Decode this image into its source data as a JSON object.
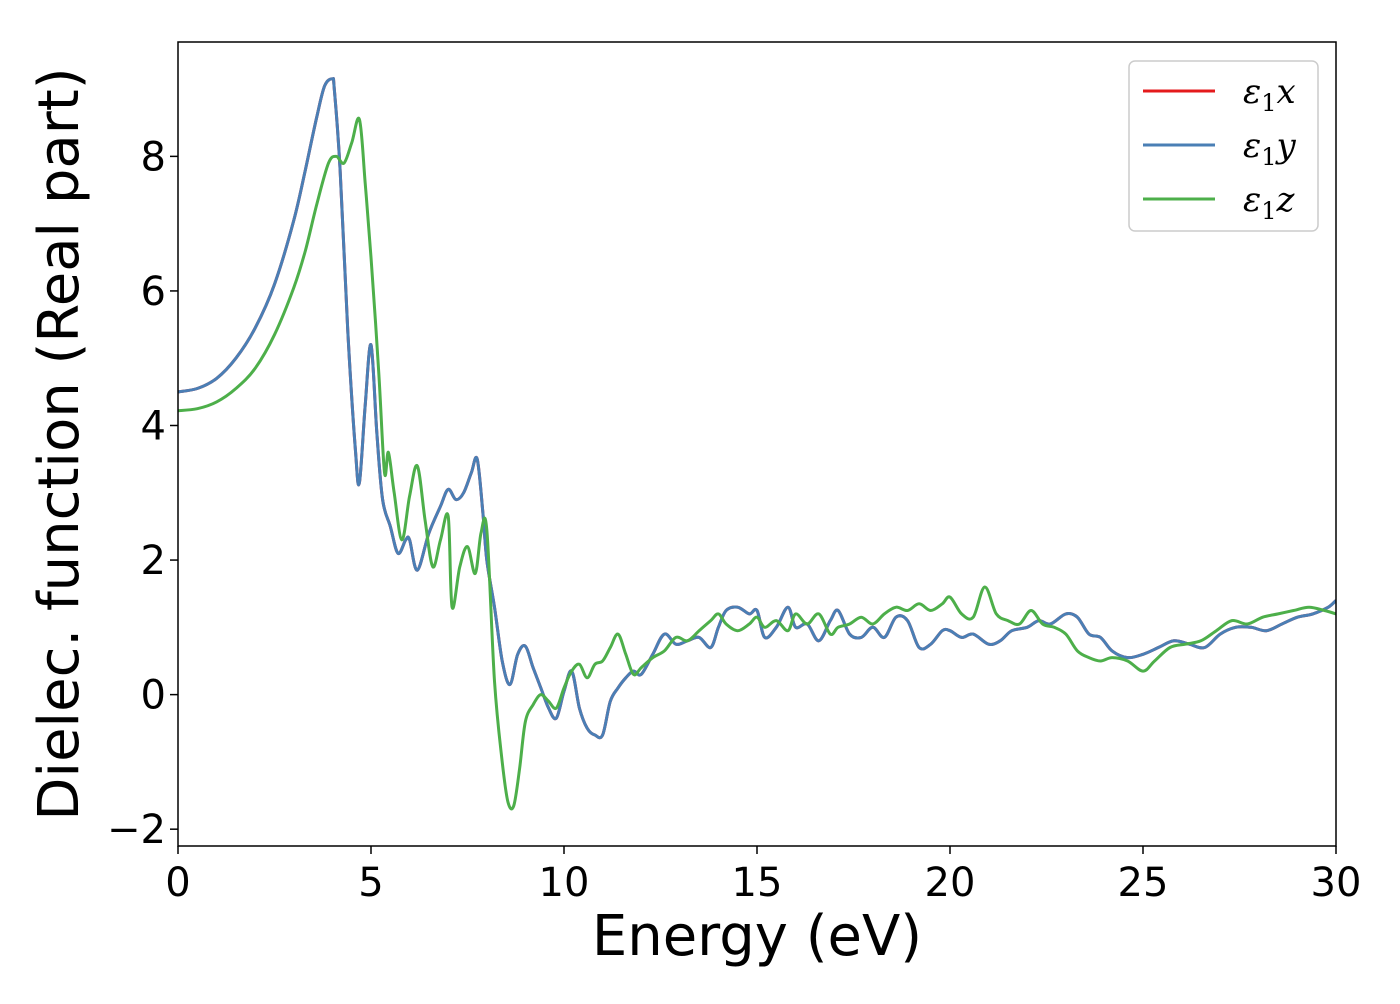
{
  "chart_data": {
    "type": "line",
    "title": "",
    "xlabel": "Energy (eV)",
    "ylabel": "Dielec. function (Real part)",
    "xlim": [
      0,
      30
    ],
    "ylim": [
      -2.25,
      9.7
    ],
    "xticks": [
      0,
      5,
      10,
      15,
      20,
      25,
      30
    ],
    "yticks": [
      -2,
      0,
      2,
      4,
      6,
      8
    ],
    "xtick_labels": [
      "0",
      "5",
      "10",
      "15",
      "20",
      "25",
      "30"
    ],
    "ytick_labels": [
      "−2",
      "0",
      "2",
      "4",
      "6",
      "8"
    ],
    "grid": false,
    "legend_position": "top-right",
    "series": [
      {
        "name": "ε1x",
        "legend": {
          "base": "ε",
          "sub": "1",
          "tail": "x"
        },
        "color": "#e41a1c",
        "x": [
          0,
          0.5,
          1.0,
          1.5,
          2.0,
          2.5,
          3.0,
          3.3,
          3.6,
          3.8,
          4.0,
          4.05,
          4.2,
          4.4,
          4.6,
          4.7,
          4.85,
          5.0,
          5.15,
          5.3,
          5.5,
          5.7,
          5.9,
          6.0,
          6.2,
          6.5,
          6.8,
          7.0,
          7.2,
          7.4,
          7.6,
          7.75,
          7.9,
          8.0,
          8.2,
          8.4,
          8.6,
          8.8,
          9.0,
          9.2,
          9.4,
          9.6,
          9.8,
          10.0,
          10.2,
          10.4,
          10.6,
          10.8,
          11.0,
          11.2,
          11.4,
          11.6,
          11.8,
          12.0,
          12.3,
          12.6,
          12.9,
          13.2,
          13.5,
          13.8,
          14.0,
          14.2,
          14.5,
          14.8,
          15.0,
          15.2,
          15.5,
          15.8,
          16.0,
          16.3,
          16.6,
          16.9,
          17.1,
          17.4,
          17.7,
          18.0,
          18.3,
          18.6,
          18.9,
          19.2,
          19.5,
          19.8,
          20.0,
          20.3,
          20.6,
          21.0,
          21.3,
          21.6,
          22.0,
          22.3,
          22.6,
          23.0,
          23.3,
          23.6,
          23.9,
          24.2,
          24.6,
          25.0,
          25.4,
          25.8,
          26.2,
          26.6,
          27.0,
          27.4,
          27.8,
          28.2,
          28.6,
          29.0,
          29.4,
          29.8,
          30.0
        ],
        "y": [
          4.5,
          4.55,
          4.7,
          5.0,
          5.45,
          6.1,
          7.05,
          7.8,
          8.6,
          9.05,
          9.15,
          9.0,
          7.8,
          5.4,
          3.6,
          3.15,
          4.3,
          5.2,
          3.9,
          2.9,
          2.5,
          2.1,
          2.3,
          2.3,
          1.85,
          2.4,
          2.8,
          3.05,
          2.9,
          3.0,
          3.3,
          3.5,
          2.7,
          2.0,
          1.3,
          0.5,
          0.15,
          0.6,
          0.72,
          0.4,
          0.1,
          -0.2,
          -0.35,
          0.05,
          0.35,
          -0.2,
          -0.5,
          -0.6,
          -0.6,
          -0.1,
          0.1,
          0.25,
          0.35,
          0.3,
          0.6,
          0.9,
          0.75,
          0.8,
          0.85,
          0.7,
          1.0,
          1.25,
          1.3,
          1.2,
          1.25,
          0.85,
          1.0,
          1.3,
          1.0,
          1.05,
          0.8,
          1.1,
          1.25,
          0.9,
          0.85,
          1.0,
          0.85,
          1.15,
          1.1,
          0.7,
          0.75,
          0.95,
          0.95,
          0.85,
          0.9,
          0.75,
          0.8,
          0.95,
          1.0,
          1.1,
          1.05,
          1.2,
          1.15,
          0.9,
          0.85,
          0.65,
          0.55,
          0.6,
          0.7,
          0.8,
          0.75,
          0.7,
          0.9,
          1.0,
          1.0,
          0.95,
          1.05,
          1.15,
          1.2,
          1.3,
          1.4
        ]
      },
      {
        "name": "ε1y",
        "legend": {
          "base": "ε",
          "sub": "1",
          "tail": "y"
        },
        "color": "#4a7fb5",
        "x": [
          0,
          0.5,
          1.0,
          1.5,
          2.0,
          2.5,
          3.0,
          3.3,
          3.6,
          3.8,
          4.0,
          4.05,
          4.2,
          4.4,
          4.6,
          4.7,
          4.85,
          5.0,
          5.15,
          5.3,
          5.5,
          5.7,
          5.9,
          6.0,
          6.2,
          6.5,
          6.8,
          7.0,
          7.2,
          7.4,
          7.6,
          7.75,
          7.9,
          8.0,
          8.2,
          8.4,
          8.6,
          8.8,
          9.0,
          9.2,
          9.4,
          9.6,
          9.8,
          10.0,
          10.2,
          10.4,
          10.6,
          10.8,
          11.0,
          11.2,
          11.4,
          11.6,
          11.8,
          12.0,
          12.3,
          12.6,
          12.9,
          13.2,
          13.5,
          13.8,
          14.0,
          14.2,
          14.5,
          14.8,
          15.0,
          15.2,
          15.5,
          15.8,
          16.0,
          16.3,
          16.6,
          16.9,
          17.1,
          17.4,
          17.7,
          18.0,
          18.3,
          18.6,
          18.9,
          19.2,
          19.5,
          19.8,
          20.0,
          20.3,
          20.6,
          21.0,
          21.3,
          21.6,
          22.0,
          22.3,
          22.6,
          23.0,
          23.3,
          23.6,
          23.9,
          24.2,
          24.6,
          25.0,
          25.4,
          25.8,
          26.2,
          26.6,
          27.0,
          27.4,
          27.8,
          28.2,
          28.6,
          29.0,
          29.4,
          29.8,
          30.0
        ],
        "y": [
          4.5,
          4.55,
          4.7,
          5.0,
          5.45,
          6.1,
          7.05,
          7.8,
          8.6,
          9.05,
          9.15,
          9.0,
          7.8,
          5.4,
          3.6,
          3.15,
          4.3,
          5.2,
          3.9,
          2.9,
          2.5,
          2.1,
          2.3,
          2.3,
          1.85,
          2.4,
          2.8,
          3.05,
          2.9,
          3.0,
          3.3,
          3.5,
          2.7,
          2.0,
          1.3,
          0.5,
          0.15,
          0.6,
          0.72,
          0.4,
          0.1,
          -0.2,
          -0.35,
          0.05,
          0.35,
          -0.2,
          -0.5,
          -0.6,
          -0.6,
          -0.1,
          0.1,
          0.25,
          0.35,
          0.3,
          0.6,
          0.9,
          0.75,
          0.8,
          0.85,
          0.7,
          1.0,
          1.25,
          1.3,
          1.2,
          1.25,
          0.85,
          1.0,
          1.3,
          1.0,
          1.05,
          0.8,
          1.1,
          1.25,
          0.9,
          0.85,
          1.0,
          0.85,
          1.15,
          1.1,
          0.7,
          0.75,
          0.95,
          0.95,
          0.85,
          0.9,
          0.75,
          0.8,
          0.95,
          1.0,
          1.1,
          1.05,
          1.2,
          1.15,
          0.9,
          0.85,
          0.65,
          0.55,
          0.6,
          0.7,
          0.8,
          0.75,
          0.7,
          0.9,
          1.0,
          1.0,
          0.95,
          1.05,
          1.15,
          1.2,
          1.3,
          1.4
        ]
      },
      {
        "name": "ε1z",
        "legend": {
          "base": "ε",
          "sub": "1",
          "tail": "z"
        },
        "color": "#4daf4a",
        "x": [
          0,
          0.5,
          1.0,
          1.5,
          2.0,
          2.5,
          3.0,
          3.3,
          3.6,
          3.9,
          4.1,
          4.3,
          4.5,
          4.7,
          4.85,
          5.0,
          5.2,
          5.35,
          5.45,
          5.6,
          5.8,
          6.0,
          6.2,
          6.4,
          6.6,
          6.8,
          7.0,
          7.1,
          7.3,
          7.5,
          7.7,
          7.85,
          8.0,
          8.2,
          8.4,
          8.55,
          8.7,
          8.85,
          9.0,
          9.2,
          9.4,
          9.6,
          9.8,
          10.0,
          10.2,
          10.4,
          10.6,
          10.8,
          11.0,
          11.2,
          11.4,
          11.6,
          11.8,
          12.0,
          12.3,
          12.6,
          12.9,
          13.2,
          13.5,
          13.8,
          14.0,
          14.2,
          14.5,
          14.8,
          15.0,
          15.2,
          15.5,
          15.8,
          16.0,
          16.3,
          16.6,
          16.9,
          17.1,
          17.4,
          17.7,
          18.0,
          18.3,
          18.6,
          18.9,
          19.2,
          19.5,
          19.8,
          20.0,
          20.3,
          20.6,
          20.9,
          21.2,
          21.5,
          21.8,
          22.1,
          22.4,
          22.7,
          23.0,
          23.3,
          23.6,
          23.9,
          24.2,
          24.6,
          25.0,
          25.3,
          25.7,
          26.1,
          26.5,
          26.9,
          27.3,
          27.7,
          28.1,
          28.5,
          28.9,
          29.3,
          29.7,
          30.0
        ],
        "y": [
          4.22,
          4.25,
          4.35,
          4.55,
          4.85,
          5.35,
          6.05,
          6.6,
          7.3,
          7.9,
          8.0,
          7.9,
          8.2,
          8.55,
          7.6,
          6.5,
          4.8,
          3.3,
          3.6,
          3.0,
          2.3,
          2.95,
          3.4,
          2.6,
          1.9,
          2.3,
          2.65,
          1.3,
          1.9,
          2.2,
          1.8,
          2.4,
          2.45,
          0.2,
          -1.0,
          -1.6,
          -1.65,
          -1.1,
          -0.4,
          -0.15,
          0.0,
          -0.1,
          -0.2,
          0.1,
          0.35,
          0.45,
          0.25,
          0.45,
          0.5,
          0.7,
          0.9,
          0.6,
          0.3,
          0.4,
          0.55,
          0.65,
          0.85,
          0.8,
          0.95,
          1.1,
          1.2,
          1.05,
          0.95,
          1.05,
          1.15,
          1.0,
          1.1,
          0.95,
          1.2,
          1.05,
          1.2,
          0.9,
          1.0,
          1.05,
          1.15,
          1.05,
          1.2,
          1.3,
          1.25,
          1.35,
          1.25,
          1.35,
          1.45,
          1.2,
          1.15,
          1.6,
          1.2,
          1.1,
          1.05,
          1.25,
          1.05,
          1.0,
          0.9,
          0.65,
          0.55,
          0.5,
          0.55,
          0.5,
          0.35,
          0.5,
          0.7,
          0.75,
          0.8,
          0.95,
          1.1,
          1.05,
          1.15,
          1.2,
          1.25,
          1.3,
          1.25,
          1.2
        ]
      }
    ]
  }
}
